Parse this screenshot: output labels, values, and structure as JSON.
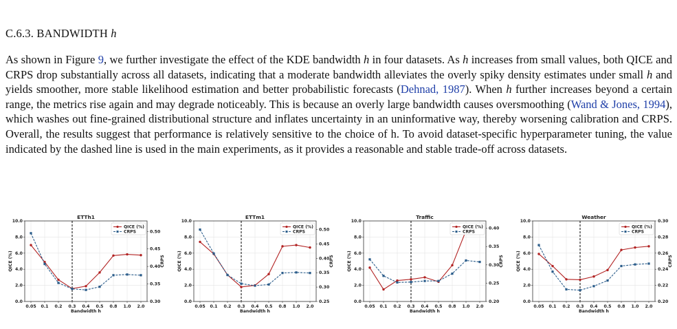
{
  "section": {
    "number": "C.6.3.",
    "title": "BANDWIDTH",
    "symbol": "h"
  },
  "paragraph": {
    "p1": "As shown in Figure ",
    "fig_ref": "9",
    "p2": ", we further investigate the effect of the KDE bandwidth ",
    "h1": "h",
    "p3": " in four datasets. As ",
    "h2": "h",
    "p4": " increases from small values, both QICE and CRPS drop substantially across all datasets, indicating that a moderate bandwidth alleviates the overly spiky density estimates under small ",
    "h3": "h",
    "p5": " and yields smoother, more stable likelihood estimation and better probabilistic forecasts (",
    "cite1": "Dehnad, 1987",
    "p6": "). When ",
    "h4": "h",
    "p7": " further increases beyond a certain range, the metrics rise again and may degrade noticeably. This is because an overly large bandwidth causes oversmoothing (",
    "cite2": "Wand & Jones, 1994",
    "p8": "), which washes out fine-grained distributional structure and inflates uncertainty in an uninformative way, thereby worsening calibration and CRPS. Overall, the results suggest that performance is relatively sensitive to the choice of h. To avoid dataset-specific hyperparameter tuning, the value indicated by the dashed line is used in the main experiments, as it provides a reasonable and stable trade-off across datasets."
  },
  "colors": {
    "qice": "#b22222",
    "crps": "#2a5c8a",
    "grid": "#e4e4e4",
    "axis": "#333333"
  },
  "chart_data": [
    {
      "type": "line",
      "title": "ETTh1",
      "xlabel": "Bandwidth h",
      "ylabel": "QICE (%)",
      "y2label": "CRPS",
      "categories": [
        "0.05",
        "0.1",
        "0.2",
        "0.3",
        "0.4",
        "0.5",
        "0.8",
        "1.0",
        "2.0"
      ],
      "ylim": [
        0.0,
        10.0
      ],
      "yticks": [
        "0.0",
        "2.0",
        "4.0",
        "6.0",
        "8.0",
        "10.0"
      ],
      "y2lim": [
        0.3,
        0.53
      ],
      "y2ticks": [
        "0.30",
        "0.35",
        "0.40",
        "0.45",
        "0.50"
      ],
      "vline_at": "0.3",
      "legend": "top-right",
      "series": [
        {
          "name": "QICE (%)",
          "axis": "left",
          "style": "solid-circle",
          "values": [
            7.0,
            4.9,
            2.7,
            1.6,
            1.9,
            3.6,
            5.7,
            5.85,
            5.75
          ]
        },
        {
          "name": "CRPS",
          "axis": "right",
          "style": "dashed-square",
          "values": [
            0.495,
            0.407,
            0.353,
            0.336,
            0.333,
            0.342,
            0.375,
            0.377,
            0.375
          ]
        }
      ]
    },
    {
      "type": "line",
      "title": "ETTm1",
      "xlabel": "Bandwidth h",
      "ylabel": "QICE (%)",
      "y2label": "CRPS",
      "categories": [
        "0.05",
        "0.1",
        "0.2",
        "0.3",
        "0.4",
        "0.5",
        "0.8",
        "1.0",
        "2.0"
      ],
      "ylim": [
        0.0,
        10.0
      ],
      "yticks": [
        "0.0",
        "2.0",
        "4.0",
        "6.0",
        "8.0",
        "10.0"
      ],
      "y2lim": [
        0.25,
        0.53
      ],
      "y2ticks": [
        "0.25",
        "0.30",
        "0.35",
        "0.40",
        "0.45",
        "0.50"
      ],
      "vline_at": "0.3",
      "legend": "top-right",
      "series": [
        {
          "name": "QICE (%)",
          "axis": "left",
          "style": "solid-circle",
          "values": [
            7.4,
            5.9,
            3.3,
            1.8,
            2.0,
            3.4,
            6.85,
            7.0,
            6.7
          ]
        },
        {
          "name": "CRPS",
          "axis": "right",
          "style": "dashed-square",
          "values": [
            0.5,
            0.417,
            0.342,
            0.312,
            0.305,
            0.309,
            0.349,
            0.351,
            0.349
          ]
        }
      ]
    },
    {
      "type": "line",
      "title": "Traffic",
      "xlabel": "Bandwidth h",
      "ylabel": "QICE (%)",
      "y2label": "CRPS",
      "categories": [
        "0.05",
        "0.1",
        "0.2",
        "0.3",
        "0.4",
        "0.5",
        "0.8",
        "1.0",
        "2.0"
      ],
      "ylim": [
        0.0,
        10.0
      ],
      "yticks": [
        "0.0",
        "2.0",
        "4.0",
        "6.0",
        "8.0",
        "10.0"
      ],
      "y2lim": [
        0.2,
        0.42
      ],
      "y2ticks": [
        "0.20",
        "0.25",
        "0.30",
        "0.35",
        "0.40"
      ],
      "vline_at": "0.3",
      "legend": "top-right",
      "series": [
        {
          "name": "QICE (%)",
          "axis": "left",
          "style": "solid-circle",
          "values": [
            4.2,
            1.5,
            2.6,
            2.75,
            3.0,
            2.45,
            4.5,
            8.8,
            null
          ]
        },
        {
          "name": "CRPS",
          "axis": "right",
          "style": "dashed-square",
          "values": [
            0.315,
            0.27,
            0.252,
            0.253,
            0.256,
            0.256,
            0.276,
            0.312,
            0.308
          ]
        }
      ]
    },
    {
      "type": "line",
      "title": "Weather",
      "xlabel": "Bandwidth h",
      "ylabel": "QICE (%)",
      "y2label": "CRPS",
      "categories": [
        "0.05",
        "0.1",
        "0.2",
        "0.3",
        "0.4",
        "0.5",
        "0.8",
        "1.0",
        "2.0"
      ],
      "ylim": [
        0.0,
        10.0
      ],
      "yticks": [
        "0.0",
        "2.0",
        "4.0",
        "6.0",
        "8.0",
        "10.0"
      ],
      "y2lim": [
        0.2,
        0.3
      ],
      "y2ticks": [
        "0.20",
        "0.22",
        "0.24",
        "0.26",
        "0.28",
        "0.30"
      ],
      "vline_at": "0.3",
      "legend": "top-right",
      "series": [
        {
          "name": "QICE (%)",
          "axis": "left",
          "style": "solid-circle",
          "values": [
            5.9,
            4.4,
            2.75,
            2.7,
            3.1,
            3.9,
            6.4,
            6.7,
            6.85
          ]
        },
        {
          "name": "CRPS",
          "axis": "right",
          "style": "dashed-square",
          "values": [
            0.27,
            0.237,
            0.215,
            0.214,
            0.219,
            0.226,
            0.244,
            0.246,
            0.247
          ]
        }
      ]
    }
  ]
}
